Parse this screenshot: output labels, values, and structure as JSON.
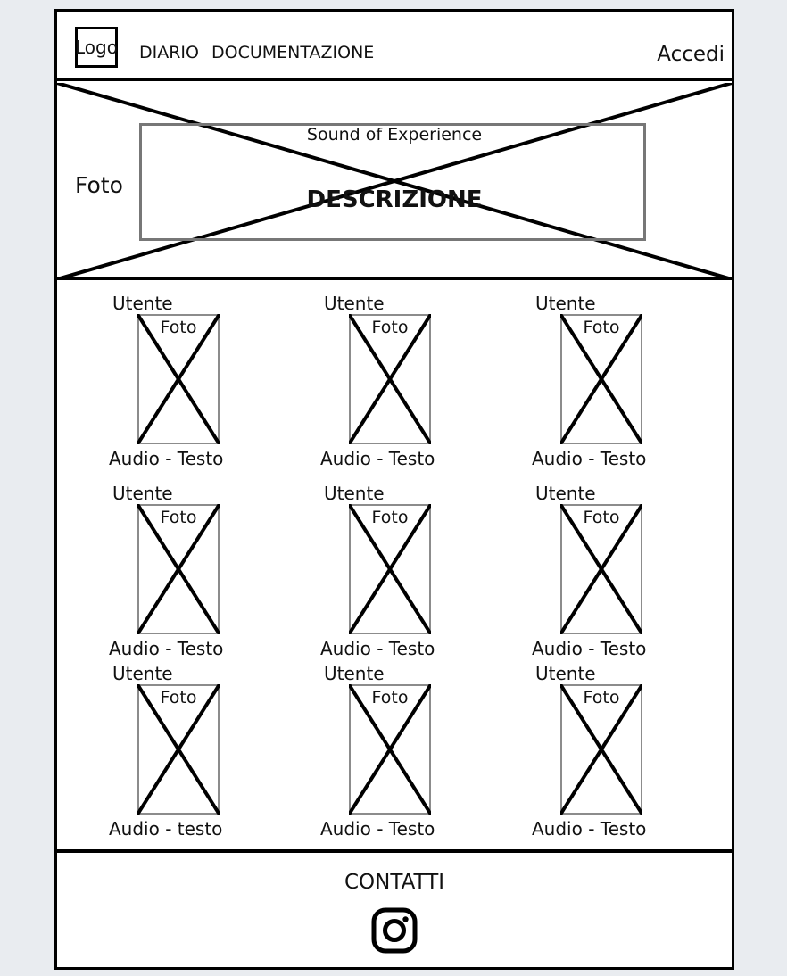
{
  "header": {
    "logo_label": "Logo",
    "nav": [
      "DIARIO",
      "DOCUMENTAZIONE"
    ],
    "login_label": "Accedi"
  },
  "hero": {
    "image_label": "Foto",
    "subtitle": "Sound of Experience",
    "description": "DESCRIZIONE"
  },
  "cards": [
    {
      "user": "Utente",
      "image_label": "Foto",
      "caption": "Audio - Testo"
    },
    {
      "user": "Utente",
      "image_label": "Foto",
      "caption": "Audio - Testo"
    },
    {
      "user": "Utente",
      "image_label": "Foto",
      "caption": "Audio - Testo"
    },
    {
      "user": "Utente",
      "image_label": "Foto",
      "caption": "Audio - Testo"
    },
    {
      "user": "Utente",
      "image_label": "Foto",
      "caption": "Audio - Testo"
    },
    {
      "user": "Utente",
      "image_label": "Foto",
      "caption": "Audio - Testo"
    },
    {
      "user": "Utente",
      "image_label": "Foto",
      "caption": "Audio - testo"
    },
    {
      "user": "Utente",
      "image_label": "Foto",
      "caption": "Audio - Testo"
    },
    {
      "user": "Utente",
      "image_label": "Foto",
      "caption": "Audio - Testo"
    }
  ],
  "footer": {
    "contacts_label": "CONTATTI",
    "social_icon": "instagram-icon"
  }
}
